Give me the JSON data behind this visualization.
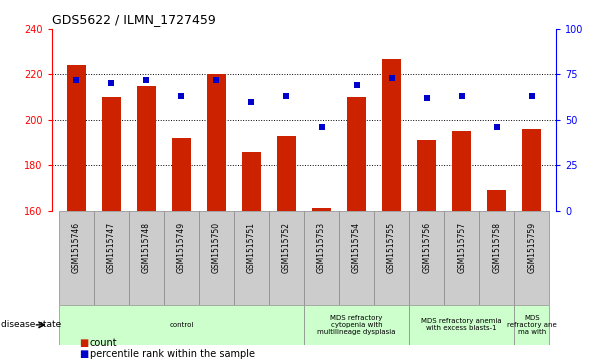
{
  "title": "GDS5622 / ILMN_1727459",
  "samples": [
    "GSM1515746",
    "GSM1515747",
    "GSM1515748",
    "GSM1515749",
    "GSM1515750",
    "GSM1515751",
    "GSM1515752",
    "GSM1515753",
    "GSM1515754",
    "GSM1515755",
    "GSM1515756",
    "GSM1515757",
    "GSM1515758",
    "GSM1515759"
  ],
  "count_values": [
    224,
    210,
    215,
    192,
    220,
    186,
    193,
    161,
    210,
    227,
    191,
    195,
    169,
    196
  ],
  "percentile_values": [
    72,
    70,
    72,
    63,
    72,
    60,
    63,
    46,
    69,
    73,
    62,
    63,
    46,
    63
  ],
  "ylim_left": [
    160,
    240
  ],
  "ylim_right": [
    0,
    100
  ],
  "yticks_left": [
    160,
    180,
    200,
    220,
    240
  ],
  "yticks_right": [
    0,
    25,
    50,
    75,
    100
  ],
  "bar_color": "#cc2200",
  "dot_color": "#0000cc",
  "bg_color": "#ffffff",
  "sample_box_color": "#cccccc",
  "sample_box_edge": "#999999",
  "disease_states": [
    {
      "label": "control",
      "start": 0,
      "end": 7,
      "color": "#ccffcc"
    },
    {
      "label": "MDS refractory\ncytopenia with\nmultilineage dysplasia",
      "start": 7,
      "end": 10,
      "color": "#ccffcc"
    },
    {
      "label": "MDS refractory anemia\nwith excess blasts-1",
      "start": 10,
      "end": 13,
      "color": "#ccffcc"
    },
    {
      "label": "MDS\nrefractory ane\nma with",
      "start": 13,
      "end": 14,
      "color": "#ccffcc"
    }
  ],
  "disease_state_label": "disease state",
  "legend_count_label": "count",
  "legend_pct_label": "percentile rank within the sample"
}
